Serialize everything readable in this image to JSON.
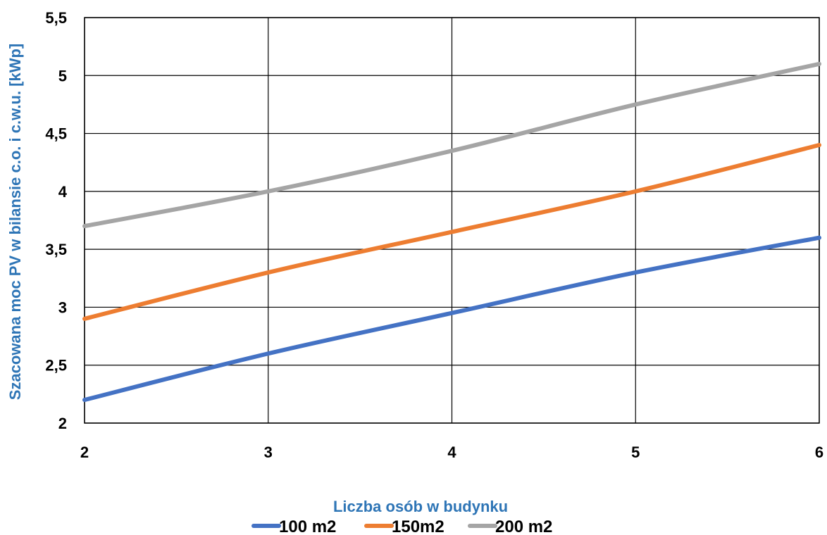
{
  "chart_data": {
    "type": "line",
    "title": "",
    "xlabel": "Liczba osób w budynku",
    "ylabel": "Szacowana moc  PV w bilansie c.o. i c.w.u. [kWp]",
    "x": [
      2,
      3,
      4,
      5,
      6
    ],
    "xlim": [
      2,
      6
    ],
    "ylim": [
      2,
      5.5
    ],
    "x_ticks": [
      "2",
      "3",
      "4",
      "5",
      "6"
    ],
    "y_ticks": [
      "2",
      "2,5",
      "3",
      "3,5",
      "4",
      "4,5",
      "5",
      "5,5"
    ],
    "grid": true,
    "legend_position": "bottom",
    "series": [
      {
        "name": "100 m2",
        "color": "#4472c4",
        "values": [
          2.2,
          2.6,
          2.95,
          3.3,
          3.6
        ]
      },
      {
        "name": "150m2",
        "color": "#ed7d31",
        "values": [
          2.9,
          3.3,
          3.65,
          4.0,
          4.4
        ]
      },
      {
        "name": "200 m2",
        "color": "#a5a5a5",
        "values": [
          3.7,
          4.0,
          4.35,
          4.75,
          5.1
        ]
      }
    ]
  }
}
